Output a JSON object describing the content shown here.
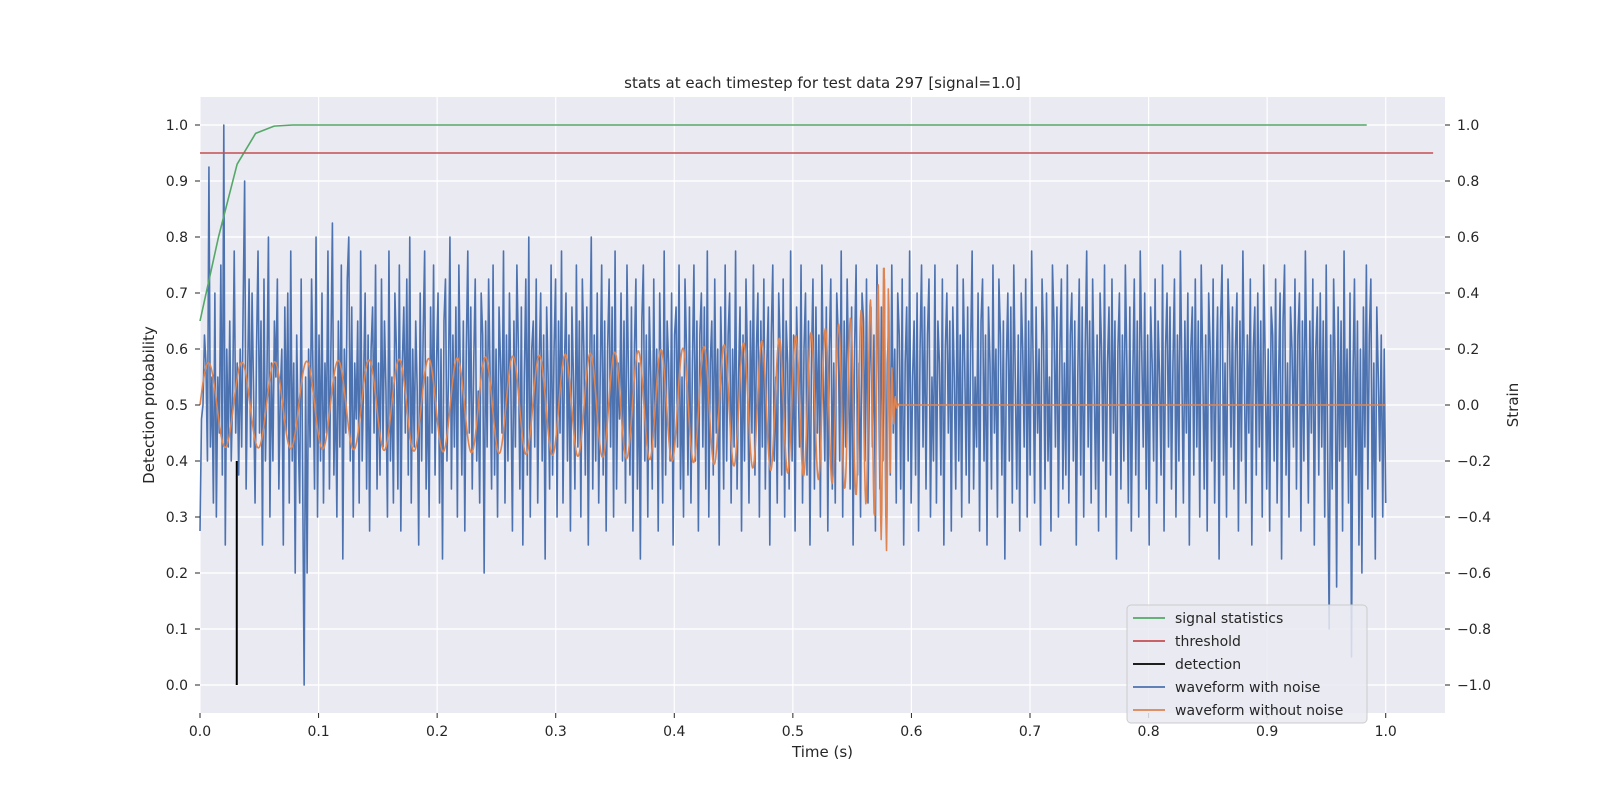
{
  "chart_data": {
    "type": "line",
    "title": "stats at each timestep for test data 297 [signal=1.0]",
    "xlabel": "Time (s)",
    "ylabel_left": "Detection probability",
    "ylabel_right": "Strain",
    "xlim": [
      0.0,
      1.05
    ],
    "ylim_left": [
      -0.05,
      1.05
    ],
    "ylim_right": [
      -1.1,
      1.1
    ],
    "xticks": [
      "0.0",
      "0.1",
      "0.2",
      "0.3",
      "0.4",
      "0.5",
      "0.6",
      "0.7",
      "0.8",
      "0.9",
      "1.0"
    ],
    "yticks_left": [
      "0.0",
      "0.1",
      "0.2",
      "0.3",
      "0.4",
      "0.5",
      "0.6",
      "0.7",
      "0.8",
      "0.9",
      "1.0"
    ],
    "yticks_right": [
      "−1.0",
      "−0.8",
      "−0.6",
      "−0.4",
      "−0.2",
      "0.0",
      "0.2",
      "0.4",
      "0.6",
      "0.8",
      "1.0"
    ],
    "grid": true,
    "legend_position": "lower right",
    "colors": {
      "signal_statistics": "#55a868",
      "threshold": "#c44e52",
      "detection": "#000000",
      "waveform_with_noise": "#4c72b0",
      "waveform_without_noise": "#dd8452",
      "background": "#eaeaf2",
      "grid": "#ffffff"
    },
    "series": [
      {
        "name": "signal statistics",
        "axis": "left",
        "x": [
          0.0,
          0.0156,
          0.0313,
          0.0469,
          0.0625,
          0.0781,
          0.0938,
          0.125,
          0.25,
          0.5,
          0.75,
          0.984
        ],
        "y": [
          0.65,
          0.8,
          0.93,
          0.985,
          0.998,
          1.0,
          1.0,
          1.0,
          1.0,
          1.0,
          1.0,
          1.0
        ]
      },
      {
        "name": "threshold",
        "axis": "left",
        "x": [
          0.0,
          1.04
        ],
        "y": [
          0.95,
          0.95
        ]
      },
      {
        "name": "detection",
        "axis": "left",
        "x": [
          0.031,
          0.031
        ],
        "y": [
          0.0,
          0.4
        ]
      },
      {
        "name": "waveform with noise",
        "axis": "right",
        "x_range": [
          0.0,
          1.0
        ],
        "y": [
          -0.45,
          -0.05,
          0.0,
          0.25,
          0.15,
          -0.2,
          0.85,
          -0.15,
          0.1,
          -0.35,
          0.4,
          -0.4,
          0.1,
          -0.1,
          0.5,
          -0.25,
          1.0,
          -0.5,
          0.2,
          -0.15,
          0.3,
          -0.2,
          0.05,
          0.55,
          -0.1,
          0.15,
          -0.25,
          0.2,
          -0.15,
          0.35,
          0.8,
          -0.3,
          0.1,
          0.45,
          -0.15,
          0.4,
          0.05,
          -0.35,
          0.2,
          0.55,
          -0.1,
          0.3,
          -0.5,
          0.45,
          -0.2,
          0.1,
          0.6,
          -0.4,
          0.15,
          -0.2,
          0.3,
          0.1,
          0.45,
          -0.3,
          0.05,
          0.2,
          -0.5,
          0.35,
          -0.1,
          0.4,
          -0.35,
          0.55,
          -0.2,
          0.15,
          -0.6,
          0.25,
          -0.1,
          -0.35,
          0.45,
          -0.25,
          -1.0,
          0.1,
          -0.6,
          0.2,
          -0.15,
          0.45,
          0.1,
          -0.3,
          0.6,
          -0.4,
          0.25,
          -0.2,
          0.4,
          -0.35,
          0.15,
          -0.1,
          0.55,
          -0.3,
          0.2,
          0.65,
          -0.25,
          0.1,
          -0.4,
          0.3,
          -0.15,
          0.5,
          -0.55,
          0.2,
          -0.1,
          0.45,
          0.6,
          -0.2,
          0.35,
          -0.4,
          0.15,
          -0.05,
          0.3,
          -0.35,
          0.55,
          -0.2,
          0.1,
          0.4,
          -0.3,
          0.25,
          -0.45,
          0.2,
          0.35,
          -0.1,
          0.5,
          -0.3,
          0.15,
          -0.25,
          0.45,
          -0.15,
          0.3,
          0.05,
          -0.4,
          0.55,
          -0.2,
          0.1,
          -0.35,
          0.4,
          0.2,
          -0.3,
          0.5,
          -0.45,
          0.15,
          0.35,
          -0.1,
          0.45,
          -0.25,
          0.6,
          -0.35,
          0.2,
          -0.15,
          0.3,
          0.05,
          -0.5,
          0.4,
          -0.2,
          0.25,
          0.55,
          -0.3,
          0.1,
          -0.4,
          0.35,
          -0.1,
          0.5,
          -0.25,
          0.15,
          0.4,
          -0.35,
          0.2,
          -0.55,
          0.3,
          0.45,
          -0.2,
          0.1,
          0.6,
          -0.3,
          0.25,
          -0.15,
          0.35,
          -0.4,
          0.5,
          0.1,
          -0.25,
          0.3,
          -0.45,
          0.2,
          0.55,
          -0.1,
          0.35,
          -0.3,
          0.15,
          0.45,
          -0.2,
          0.05,
          -0.35,
          0.4,
          0.25,
          -0.6,
          0.3,
          -0.15,
          0.45,
          0.1,
          -0.3,
          0.5,
          -0.25,
          0.2,
          -0.4,
          0.35,
          0.15,
          -0.1,
          0.55,
          -0.35,
          0.25,
          -0.2,
          0.4,
          0.05,
          -0.45,
          0.3,
          -0.15,
          0.5,
          0.2,
          -0.3,
          0.35,
          -0.5,
          0.1,
          0.45,
          -0.25,
          0.6,
          -0.4,
          0.2,
          0.3,
          -0.15,
          0.45,
          -0.35,
          0.15,
          0.4,
          -0.2,
          0.25,
          -0.55,
          0.35,
          0.1,
          -0.3,
          0.5,
          -0.25,
          0.2,
          0.45,
          -0.4,
          0.3,
          -0.1,
          0.55,
          -0.35,
          0.15,
          0.4,
          -0.2,
          0.25,
          -0.45,
          0.35,
          0.1,
          -0.3,
          0.5,
          -0.15,
          0.3,
          -0.4,
          0.45,
          0.2,
          -0.25,
          0.35,
          -0.5,
          0.15,
          0.6,
          -0.3,
          0.25,
          -0.2,
          0.4,
          -0.35,
          0.1,
          0.5,
          -0.25,
          0.3,
          -0.45,
          0.2,
          0.45,
          -0.15,
          0.35,
          -0.4,
          0.55,
          -0.3,
          0.15,
          -0.05,
          0.4,
          -0.2,
          0.3,
          -0.35,
          0.5,
          0.1,
          -0.25,
          0.35,
          -0.45,
          0.2,
          0.45,
          -0.3,
          0.15,
          -0.55,
          0.3,
          0.5,
          -0.2,
          0.25,
          -0.4,
          0.35,
          0.1,
          -0.3,
          0.45,
          -0.15,
          0.2,
          -0.45,
          0.4,
          0.05,
          -0.35,
          0.55,
          -0.25,
          0.3,
          0.15,
          -0.2,
          0.4,
          -0.5,
          0.25,
          0.35,
          -0.15,
          0.5,
          -0.3,
          0.1,
          -0.4,
          0.45,
          0.2,
          -0.25,
          0.35,
          -0.35,
          0.15,
          0.5,
          -0.2,
          0.3,
          -0.45,
          0.25,
          0.4,
          -0.15,
          0.35,
          -0.3,
          0.55,
          -0.4,
          0.15,
          0.3,
          -0.25,
          0.45,
          -0.1,
          0.2,
          -0.5,
          0.35,
          0.1,
          -0.3,
          0.5,
          -0.2,
          0.25,
          0.4,
          -0.35,
          0.2,
          -0.15,
          0.55,
          -0.3,
          0.1,
          0.35,
          -0.45,
          0.25,
          -0.2,
          0.45,
          0.15,
          -0.35,
          0.3,
          -0.1,
          0.5,
          -0.25,
          0.2,
          0.4,
          -0.4,
          0.3,
          -0.15,
          0.45,
          -0.3,
          0.15,
          0.35,
          -0.5,
          0.25,
          0.5,
          -0.2,
          0.1,
          -0.35,
          0.4,
          0.2,
          -0.25,
          0.45,
          -0.4,
          0.3,
          0.15,
          -0.3,
          0.55,
          -0.2,
          0.25,
          -0.45,
          0.35,
          0.1,
          -0.15,
          0.5,
          -0.35,
          0.2,
          0.4,
          -0.25,
          0.3,
          -0.5,
          0.15,
          0.45,
          -0.3,
          0.35,
          -0.1,
          0.25,
          -0.4,
          0.5,
          0.1,
          -0.2,
          0.35,
          -0.45,
          0.2,
          0.45,
          -0.3,
          0.15,
          -0.35,
          0.4,
          0.25,
          -0.2,
          0.55,
          -0.4,
          0.3,
          -0.15,
          0.45,
          0.1,
          -0.3,
          0.35,
          -0.5,
          0.2,
          0.5,
          -0.25,
          0.15,
          -0.4,
          0.4,
          0.3,
          -0.2,
          0.45,
          -0.35,
          0.1,
          0.35,
          -0.15,
          0.25,
          -0.45,
          0.5,
          0.2,
          -0.3,
          0.35,
          -0.2,
          0.45,
          -0.4,
          0.15,
          0.3,
          -0.25,
          0.5,
          -0.1,
          0.2,
          -0.35,
          0.4,
          0.25,
          -0.3,
          0.45,
          -0.5,
          0.15,
          0.35,
          -0.2,
          0.55,
          -0.35,
          0.1,
          0.3,
          -0.25,
          0.4,
          -0.45,
          0.2,
          0.5,
          -0.15,
          0.35,
          -0.3,
          0.25,
          0.45,
          -0.4,
          0.1,
          -0.2,
          0.5,
          -0.35,
          0.3,
          0.15,
          -0.25,
          0.45,
          -0.5,
          0.2,
          0.4,
          -0.1,
          0.3,
          -0.45,
          0.35,
          0.1,
          -0.3,
          0.5,
          -0.2,
          0.25,
          -0.4,
          0.45,
          0.15,
          -0.25,
          0.35,
          -0.35,
          0.2,
          0.55,
          -0.3,
          0.1,
          -0.15,
          0.4,
          -0.45,
          0.3,
          0.45,
          -0.2,
          0.25,
          -0.5,
          0.35,
          0.15,
          -0.3,
          0.5,
          -0.1,
          0.2,
          -0.4,
          0.45,
          0.25,
          -0.25,
          0.3,
          -0.55,
          0.15,
          0.4,
          -0.2,
          0.35,
          -0.35,
          0.5,
          0.1,
          -0.3,
          0.25,
          -0.45,
          0.4,
          0.2,
          -0.15,
          0.45,
          -0.4,
          0.3,
          -0.25,
          0.55,
          0.15,
          -0.35,
          0.35,
          -0.1,
          0.2,
          -0.5,
          0.45,
          0.25,
          -0.3,
          0.4,
          -0.2,
          0.1,
          -0.45,
          0.5,
          0.3,
          -0.15,
          0.35,
          -0.4,
          0.2,
          0.45,
          -0.3,
          0.15,
          -0.25,
          0.5,
          -0.35,
          0.25,
          0.4,
          -0.2,
          0.3,
          -0.5,
          0.1,
          0.45,
          -0.25,
          0.35,
          -0.4,
          0.2,
          0.55,
          -0.15,
          0.3,
          -0.35,
          0.45,
          0.1,
          -0.3,
          0.25,
          -0.45,
          0.4,
          0.2,
          -0.2,
          0.5,
          -0.4,
          0.15,
          0.35,
          -0.25,
          0.45,
          -0.1,
          0.3,
          -0.55,
          0.2,
          0.4,
          -0.3,
          0.25,
          -0.2,
          0.5,
          0.15,
          -0.35,
          0.35,
          -0.45,
          0.1,
          0.45,
          -0.25,
          0.3,
          -0.4,
          0.55,
          0.2,
          -0.15,
          0.4,
          -0.3,
          0.25,
          -0.5,
          0.35,
          0.15,
          -0.2,
          0.45,
          -0.35,
          0.3,
          0.1,
          -0.25,
          0.5,
          -0.45,
          0.2,
          0.4,
          -0.15,
          0.35,
          -0.3,
          0.15,
          0.45,
          -0.4,
          0.25,
          -0.2,
          0.55,
          0.1,
          -0.35,
          0.3,
          -0.1,
          0.4,
          -0.5,
          0.2,
          0.35,
          -0.25,
          0.45,
          -0.15,
          0.3,
          -0.4,
          0.5,
          0.15,
          -0.3,
          0.25,
          -0.45,
          0.4,
          0.2,
          -0.2,
          0.45,
          -0.35,
          0.1,
          0.35,
          -0.55,
          0.3,
          0.5,
          -0.25,
          0.15,
          -0.4,
          0.45,
          0.25,
          -0.15,
          0.35,
          -0.3,
          0.2,
          0.4,
          -0.45,
          0.3,
          -0.2,
          0.55,
          0.1,
          -0.35,
          0.25,
          -0.1,
          0.45,
          -0.5,
          0.2,
          0.35,
          -0.25,
          0.4,
          -0.15,
          0.3,
          -0.4,
          0.5,
          0.15,
          -0.3,
          0.2,
          -0.45,
          0.35,
          0.25,
          -0.2,
          0.45,
          -0.35,
          0.1,
          0.4,
          -0.55,
          0.3,
          0.5,
          -0.25,
          0.15,
          -0.4,
          0.35,
          0.2,
          -0.15,
          0.45,
          -0.3,
          0.25,
          0.4,
          -0.45,
          0.3,
          -0.2,
          0.55,
          0.1,
          -0.35,
          0.3,
          -0.1,
          0.45,
          -0.5,
          0.2,
          0.35,
          -0.25,
          0.4,
          -0.15,
          0.3,
          -0.4,
          0.5,
          -0.2,
          -0.8,
          0.25,
          -0.3,
          0.45,
          0.15,
          -0.65,
          0.35,
          -0.2,
          0.3,
          -0.45,
          0.55,
          -0.15,
          0.2,
          -0.35,
          0.4,
          -0.9,
          0.1,
          0.45,
          -0.25,
          0.3,
          -0.5,
          0.2,
          -0.6,
          0.35,
          -0.15,
          0.5,
          -0.3,
          0.25,
          0.45,
          -0.4,
          0.15,
          -0.55,
          0.35,
          0.1,
          -0.2,
          0.25,
          -0.4,
          0.2,
          -0.35
        ]
      },
      {
        "name": "waveform without noise",
        "axis": "right",
        "chirp": {
          "t_merger": 0.58,
          "f0_hz": 35,
          "amp0": 0.15,
          "amp_peak": 0.6,
          "ringdown_end": 0.59,
          "t_end": 1.0
        }
      }
    ],
    "legend": [
      "signal statistics",
      "threshold",
      "detection",
      "waveform with noise",
      "waveform without noise"
    ]
  }
}
